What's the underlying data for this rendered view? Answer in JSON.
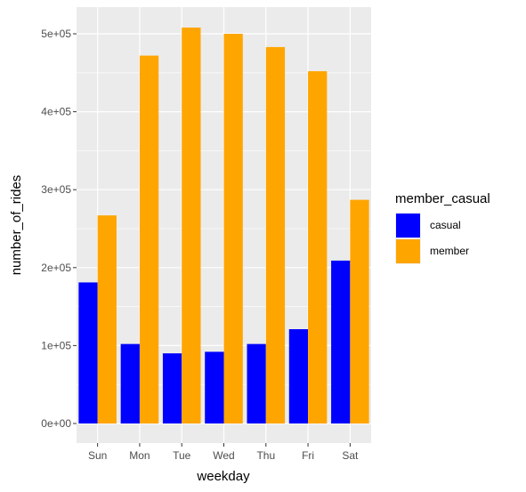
{
  "chart_data": {
    "type": "bar",
    "title": "",
    "xlabel": "weekday",
    "ylabel": "number_of_rides",
    "categories": [
      "Sun",
      "Mon",
      "Tue",
      "Wed",
      "Thu",
      "Fri",
      "Sat"
    ],
    "series": [
      {
        "name": "casual",
        "color": "#0000ff",
        "values": [
          181000,
          102000,
          90000,
          92000,
          102000,
          121000,
          209000
        ]
      },
      {
        "name": "member",
        "color": "#ffa500",
        "values": [
          267000,
          472000,
          508000,
          500000,
          483000,
          452000,
          287000
        ]
      }
    ],
    "ylim": [
      0,
      525000
    ],
    "yticks": [
      0,
      100000,
      200000,
      300000,
      400000,
      500000
    ],
    "ytick_labels": [
      "0e+00",
      "1e+05",
      "2e+05",
      "3e+05",
      "4e+05",
      "5e+05"
    ],
    "legend": {
      "title": "member_casual",
      "position": "right"
    },
    "grid": true,
    "panel_background": "#ebebeb",
    "grid_color": "#ffffff"
  }
}
